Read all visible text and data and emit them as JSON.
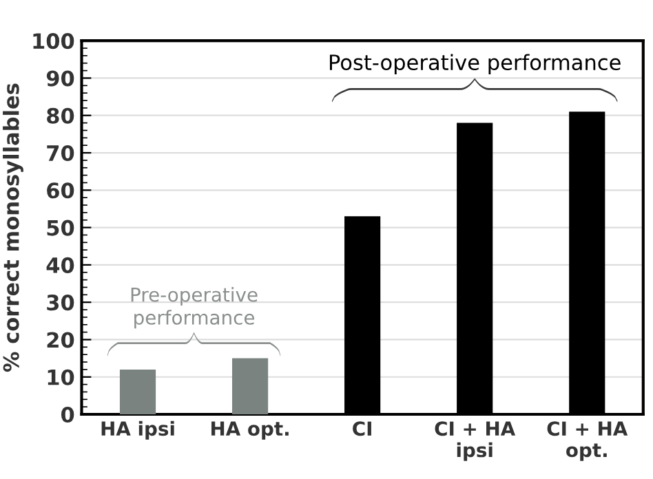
{
  "chart_data": {
    "type": "bar",
    "ylabel": "% correct monosyllables",
    "categories": [
      "HA ipsi",
      "HA opt.",
      "CI",
      "CI + HA\nipsi",
      "CI + HA\nopt."
    ],
    "values": [
      12,
      15,
      53,
      78,
      81
    ],
    "colors": [
      "#7b8381",
      "#7b8381",
      "#000000",
      "#000000",
      "#000000"
    ],
    "ylim": [
      0,
      100
    ],
    "yticks": [
      0,
      10,
      20,
      30,
      40,
      50,
      60,
      70,
      80,
      90,
      100
    ],
    "grid": "y",
    "annotations": [
      "Pre-operative\nperformance",
      "Post-operative performance"
    ]
  }
}
